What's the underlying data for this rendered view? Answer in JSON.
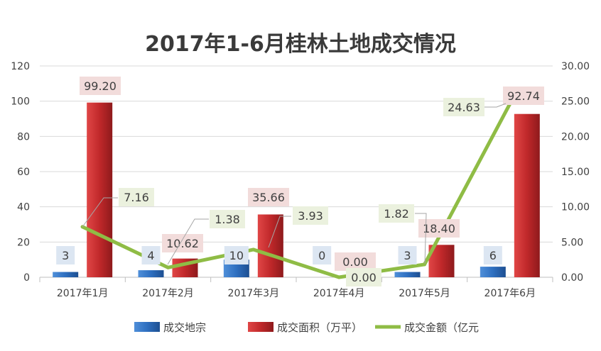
{
  "chart_data": {
    "type": "bar",
    "title": "2017年1-6月桂林土地成交情况",
    "categories": [
      "2017年1月",
      "2017年2月",
      "2017年3月",
      "2017年4月",
      "2017年5月",
      "2017年6月"
    ],
    "series": [
      {
        "name": "成交地宗",
        "type": "bar",
        "axis": "left",
        "color": "#2e6fc0",
        "values": [
          3,
          4,
          10,
          0,
          3,
          6
        ],
        "labels": [
          "3",
          "4",
          "10",
          "0",
          "3",
          "6"
        ],
        "label_bg": "#dce6f2"
      },
      {
        "name": "成交面积（万平）",
        "type": "bar",
        "axis": "left",
        "color": "#c0282a",
        "values": [
          99.2,
          10.62,
          35.66,
          0,
          18.4,
          92.74
        ],
        "labels": [
          "99.20",
          "10.62",
          "35.66",
          "0.00",
          "18.40",
          "92.74"
        ],
        "label_bg": "#f2dcdb"
      },
      {
        "name": "成交金额（亿元",
        "type": "line",
        "axis": "right",
        "color": "#8fbc45",
        "values": [
          7.16,
          1.38,
          3.93,
          0,
          1.82,
          24.63
        ],
        "labels": [
          "7.16",
          "1.38",
          "3.93",
          "0.00",
          "1.82",
          "24.63"
        ],
        "label_bg": "#ebf1de"
      }
    ],
    "y_left": {
      "min": 0,
      "max": 120,
      "ticks": [
        "0",
        "20",
        "40",
        "60",
        "80",
        "100",
        "120"
      ]
    },
    "y_right": {
      "min": 0,
      "max": 30,
      "ticks": [
        "0.00",
        "5.00",
        "10.00",
        "15.00",
        "20.00",
        "25.00",
        "30.00"
      ]
    },
    "grid": true,
    "legend_position": "bottom"
  }
}
